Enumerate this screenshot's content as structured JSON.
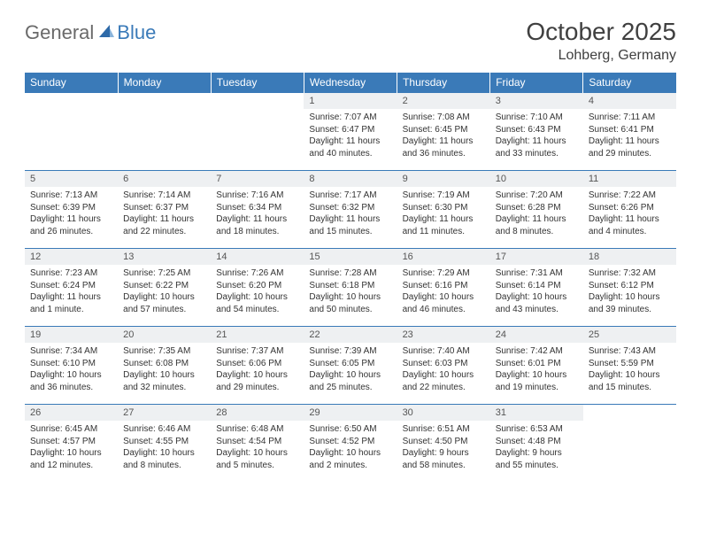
{
  "brand": {
    "part1": "General",
    "part2": "Blue"
  },
  "title": {
    "month_year": "October 2025",
    "location": "Lohberg, Germany"
  },
  "colors": {
    "header_bg": "#3a7ab8",
    "daynum_bg": "#eef0f2",
    "border": "#3a7ab8",
    "text": "#333333"
  },
  "weekdays": [
    "Sunday",
    "Monday",
    "Tuesday",
    "Wednesday",
    "Thursday",
    "Friday",
    "Saturday"
  ],
  "weeks": [
    [
      {
        "n": "",
        "sr": "",
        "ss": "",
        "dl": ""
      },
      {
        "n": "",
        "sr": "",
        "ss": "",
        "dl": ""
      },
      {
        "n": "",
        "sr": "",
        "ss": "",
        "dl": ""
      },
      {
        "n": "1",
        "sr": "Sunrise: 7:07 AM",
        "ss": "Sunset: 6:47 PM",
        "dl": "Daylight: 11 hours and 40 minutes."
      },
      {
        "n": "2",
        "sr": "Sunrise: 7:08 AM",
        "ss": "Sunset: 6:45 PM",
        "dl": "Daylight: 11 hours and 36 minutes."
      },
      {
        "n": "3",
        "sr": "Sunrise: 7:10 AM",
        "ss": "Sunset: 6:43 PM",
        "dl": "Daylight: 11 hours and 33 minutes."
      },
      {
        "n": "4",
        "sr": "Sunrise: 7:11 AM",
        "ss": "Sunset: 6:41 PM",
        "dl": "Daylight: 11 hours and 29 minutes."
      }
    ],
    [
      {
        "n": "5",
        "sr": "Sunrise: 7:13 AM",
        "ss": "Sunset: 6:39 PM",
        "dl": "Daylight: 11 hours and 26 minutes."
      },
      {
        "n": "6",
        "sr": "Sunrise: 7:14 AM",
        "ss": "Sunset: 6:37 PM",
        "dl": "Daylight: 11 hours and 22 minutes."
      },
      {
        "n": "7",
        "sr": "Sunrise: 7:16 AM",
        "ss": "Sunset: 6:34 PM",
        "dl": "Daylight: 11 hours and 18 minutes."
      },
      {
        "n": "8",
        "sr": "Sunrise: 7:17 AM",
        "ss": "Sunset: 6:32 PM",
        "dl": "Daylight: 11 hours and 15 minutes."
      },
      {
        "n": "9",
        "sr": "Sunrise: 7:19 AM",
        "ss": "Sunset: 6:30 PM",
        "dl": "Daylight: 11 hours and 11 minutes."
      },
      {
        "n": "10",
        "sr": "Sunrise: 7:20 AM",
        "ss": "Sunset: 6:28 PM",
        "dl": "Daylight: 11 hours and 8 minutes."
      },
      {
        "n": "11",
        "sr": "Sunrise: 7:22 AM",
        "ss": "Sunset: 6:26 PM",
        "dl": "Daylight: 11 hours and 4 minutes."
      }
    ],
    [
      {
        "n": "12",
        "sr": "Sunrise: 7:23 AM",
        "ss": "Sunset: 6:24 PM",
        "dl": "Daylight: 11 hours and 1 minute."
      },
      {
        "n": "13",
        "sr": "Sunrise: 7:25 AM",
        "ss": "Sunset: 6:22 PM",
        "dl": "Daylight: 10 hours and 57 minutes."
      },
      {
        "n": "14",
        "sr": "Sunrise: 7:26 AM",
        "ss": "Sunset: 6:20 PM",
        "dl": "Daylight: 10 hours and 54 minutes."
      },
      {
        "n": "15",
        "sr": "Sunrise: 7:28 AM",
        "ss": "Sunset: 6:18 PM",
        "dl": "Daylight: 10 hours and 50 minutes."
      },
      {
        "n": "16",
        "sr": "Sunrise: 7:29 AM",
        "ss": "Sunset: 6:16 PM",
        "dl": "Daylight: 10 hours and 46 minutes."
      },
      {
        "n": "17",
        "sr": "Sunrise: 7:31 AM",
        "ss": "Sunset: 6:14 PM",
        "dl": "Daylight: 10 hours and 43 minutes."
      },
      {
        "n": "18",
        "sr": "Sunrise: 7:32 AM",
        "ss": "Sunset: 6:12 PM",
        "dl": "Daylight: 10 hours and 39 minutes."
      }
    ],
    [
      {
        "n": "19",
        "sr": "Sunrise: 7:34 AM",
        "ss": "Sunset: 6:10 PM",
        "dl": "Daylight: 10 hours and 36 minutes."
      },
      {
        "n": "20",
        "sr": "Sunrise: 7:35 AM",
        "ss": "Sunset: 6:08 PM",
        "dl": "Daylight: 10 hours and 32 minutes."
      },
      {
        "n": "21",
        "sr": "Sunrise: 7:37 AM",
        "ss": "Sunset: 6:06 PM",
        "dl": "Daylight: 10 hours and 29 minutes."
      },
      {
        "n": "22",
        "sr": "Sunrise: 7:39 AM",
        "ss": "Sunset: 6:05 PM",
        "dl": "Daylight: 10 hours and 25 minutes."
      },
      {
        "n": "23",
        "sr": "Sunrise: 7:40 AM",
        "ss": "Sunset: 6:03 PM",
        "dl": "Daylight: 10 hours and 22 minutes."
      },
      {
        "n": "24",
        "sr": "Sunrise: 7:42 AM",
        "ss": "Sunset: 6:01 PM",
        "dl": "Daylight: 10 hours and 19 minutes."
      },
      {
        "n": "25",
        "sr": "Sunrise: 7:43 AM",
        "ss": "Sunset: 5:59 PM",
        "dl": "Daylight: 10 hours and 15 minutes."
      }
    ],
    [
      {
        "n": "26",
        "sr": "Sunrise: 6:45 AM",
        "ss": "Sunset: 4:57 PM",
        "dl": "Daylight: 10 hours and 12 minutes."
      },
      {
        "n": "27",
        "sr": "Sunrise: 6:46 AM",
        "ss": "Sunset: 4:55 PM",
        "dl": "Daylight: 10 hours and 8 minutes."
      },
      {
        "n": "28",
        "sr": "Sunrise: 6:48 AM",
        "ss": "Sunset: 4:54 PM",
        "dl": "Daylight: 10 hours and 5 minutes."
      },
      {
        "n": "29",
        "sr": "Sunrise: 6:50 AM",
        "ss": "Sunset: 4:52 PM",
        "dl": "Daylight: 10 hours and 2 minutes."
      },
      {
        "n": "30",
        "sr": "Sunrise: 6:51 AM",
        "ss": "Sunset: 4:50 PM",
        "dl": "Daylight: 9 hours and 58 minutes."
      },
      {
        "n": "31",
        "sr": "Sunrise: 6:53 AM",
        "ss": "Sunset: 4:48 PM",
        "dl": "Daylight: 9 hours and 55 minutes."
      },
      {
        "n": "",
        "sr": "",
        "ss": "",
        "dl": ""
      }
    ]
  ]
}
